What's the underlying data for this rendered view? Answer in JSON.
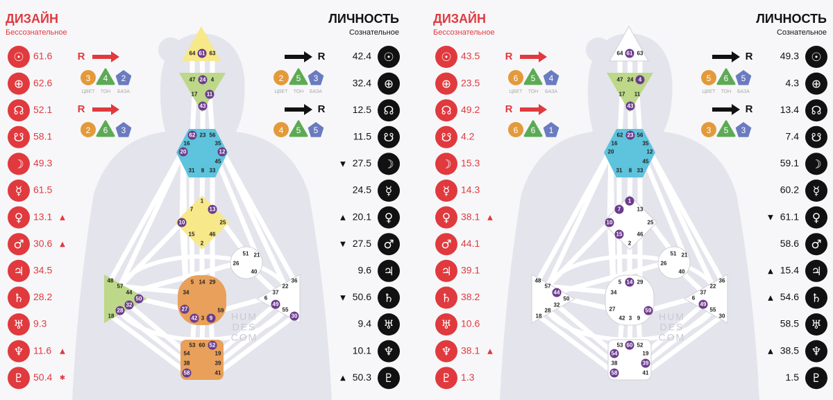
{
  "planets": [
    "☉",
    "⊕",
    "☊",
    "☋",
    "☽",
    "☿",
    "♀",
    "♂",
    "♃",
    "♄",
    "♅",
    "♆",
    "♇"
  ],
  "variable_colors": [
    "#e39a3b",
    "#5daa55",
    "#6a7bc0"
  ],
  "watermark": [
    "HUM",
    "DES",
    "COM"
  ],
  "charts": [
    {
      "design": {
        "title": "ДИЗАЙН",
        "subtitle": "Бессознательное",
        "color": "#e03a3e",
        "rows": [
          {
            "value": "61.6"
          },
          {
            "value": "62.6"
          },
          {
            "value": "52.1"
          },
          {
            "value": "58.1"
          },
          {
            "value": "49.3"
          },
          {
            "value": "61.5"
          },
          {
            "value": "13.1",
            "mark": "▲"
          },
          {
            "value": "30.6",
            "mark": "▲"
          },
          {
            "value": "34.5"
          },
          {
            "value": "28.2"
          },
          {
            "value": "9.3"
          },
          {
            "value": "11.6",
            "mark": "▲"
          },
          {
            "value": "50.4",
            "mark": "✱"
          }
        ],
        "variables": [
          {
            "arrow": "R",
            "values": [
              3,
              4,
              2
            ],
            "labels": [
              "ЦВЕТ",
              "ТОН",
              "БАЗА"
            ]
          },
          {
            "arrow": "R",
            "values": [
              2,
              6,
              3
            ]
          }
        ]
      },
      "personality": {
        "title": "ЛИЧНОСТЬ",
        "subtitle": "Сознательное",
        "color": "#111111",
        "rows": [
          {
            "value": "42.4"
          },
          {
            "value": "32.4"
          },
          {
            "value": "12.5"
          },
          {
            "value": "11.5"
          },
          {
            "value": "27.5",
            "mark": "▼"
          },
          {
            "value": "24.5"
          },
          {
            "value": "20.1",
            "mark": "▲"
          },
          {
            "value": "27.5",
            "mark": "▼"
          },
          {
            "value": "9.6"
          },
          {
            "value": "50.6",
            "mark": "▼"
          },
          {
            "value": "9.4"
          },
          {
            "value": "10.1"
          },
          {
            "value": "50.3",
            "mark": "▲"
          }
        ],
        "variables": [
          {
            "arrow": "R",
            "values": [
              2,
              5,
              3
            ],
            "labels": [
              "ЦВЕТ",
              "ТОН",
              "БАЗА"
            ]
          },
          {
            "arrow": "R",
            "values": [
              4,
              5,
              5
            ]
          }
        ]
      },
      "centers": {
        "H": {
          "color": "#f7e88a",
          "gates": [
            {
              "n": 64
            },
            {
              "n": 61,
              "on": true
            },
            {
              "n": 63
            }
          ]
        },
        "A": {
          "color": "#bcd888",
          "gates": [
            {
              "n": 47
            },
            {
              "n": 24,
              "on": true
            },
            {
              "n": 4
            },
            {
              "n": 17
            },
            {
              "n": 11,
              "on": true
            },
            {
              "n": 43,
              "on": true
            }
          ]
        },
        "T": {
          "color": "#5ec3dc",
          "gates": [
            {
              "n": 62,
              "on": true
            },
            {
              "n": 23
            },
            {
              "n": 56
            },
            {
              "n": 16
            },
            {
              "n": 35
            },
            {
              "n": 20,
              "on": true
            },
            {
              "n": 12,
              "on": true
            },
            {
              "n": 45
            },
            {
              "n": 31
            },
            {
              "n": 8
            },
            {
              "n": 33
            }
          ]
        },
        "G": {
          "color": "#f7e88a",
          "gates": [
            {
              "n": 1
            },
            {
              "n": 7
            },
            {
              "n": 13,
              "on": true
            },
            {
              "n": 10,
              "on": true
            },
            {
              "n": 25
            },
            {
              "n": 15
            },
            {
              "n": 46
            },
            {
              "n": 2
            }
          ]
        },
        "E": {
          "color": "#ffffff",
          "gates": [
            {
              "n": 51
            },
            {
              "n": 21
            },
            {
              "n": 26
            },
            {
              "n": 40
            }
          ]
        },
        "S": {
          "color": "#bcd888",
          "gates": [
            {
              "n": 48
            },
            {
              "n": 57
            },
            {
              "n": 44
            },
            {
              "n": 50,
              "on": true
            },
            {
              "n": 32,
              "on": true
            },
            {
              "n": 28,
              "on": true
            },
            {
              "n": 18
            }
          ]
        },
        "C": {
          "color": "#e8a05a",
          "gates": [
            {
              "n": 5
            },
            {
              "n": 14
            },
            {
              "n": 29
            },
            {
              "n": 34
            },
            {
              "n": 27,
              "on": true
            },
            {
              "n": 59
            },
            {
              "n": 42,
              "on": true
            },
            {
              "n": 3
            },
            {
              "n": 9,
              "on": true
            }
          ]
        },
        "P": {
          "color": "#ffffff",
          "gates": [
            {
              "n": 36
            },
            {
              "n": 22
            },
            {
              "n": 37
            },
            {
              "n": 6
            },
            {
              "n": 49,
              "on": true
            },
            {
              "n": 55
            },
            {
              "n": 30,
              "on": true
            }
          ]
        },
        "R": {
          "color": "#e8a05a",
          "gates": [
            {
              "n": 53
            },
            {
              "n": 60
            },
            {
              "n": 52,
              "on": true
            },
            {
              "n": 54
            },
            {
              "n": 19
            },
            {
              "n": 38
            },
            {
              "n": 39
            },
            {
              "n": 58,
              "on": true
            },
            {
              "n": 41
            }
          ]
        }
      }
    },
    {
      "design": {
        "title": "ДИЗАЙН",
        "subtitle": "Бессознательное",
        "color": "#e03a3e",
        "rows": [
          {
            "value": "43.5"
          },
          {
            "value": "23.5"
          },
          {
            "value": "49.2"
          },
          {
            "value": "4.2"
          },
          {
            "value": "15.3"
          },
          {
            "value": "14.3"
          },
          {
            "value": "38.1",
            "mark": "▲"
          },
          {
            "value": "44.1"
          },
          {
            "value": "39.1"
          },
          {
            "value": "38.2"
          },
          {
            "value": "10.6"
          },
          {
            "value": "38.1",
            "mark": "▲"
          },
          {
            "value": "1.3"
          }
        ],
        "variables": [
          {
            "arrow": "R",
            "values": [
              6,
              5,
              4
            ],
            "labels": [
              "ЦВЕТ",
              "ТОН",
              "БАЗА"
            ]
          },
          {
            "arrow": "R",
            "values": [
              6,
              6,
              1
            ]
          }
        ]
      },
      "personality": {
        "title": "ЛИЧНОСТЬ",
        "subtitle": "Сознательное",
        "color": "#111111",
        "rows": [
          {
            "value": "49.3"
          },
          {
            "value": "4.3"
          },
          {
            "value": "13.4"
          },
          {
            "value": "7.4"
          },
          {
            "value": "59.1"
          },
          {
            "value": "60.2"
          },
          {
            "value": "61.1",
            "mark": "▼"
          },
          {
            "value": "58.6"
          },
          {
            "value": "15.4",
            "mark": "▲"
          },
          {
            "value": "54.6",
            "mark": "▲"
          },
          {
            "value": "58.5"
          },
          {
            "value": "38.5",
            "mark": "▲"
          },
          {
            "value": "1.5"
          }
        ],
        "variables": [
          {
            "arrow": "R",
            "values": [
              5,
              6,
              5
            ],
            "labels": [
              "ЦВЕТ",
              "ТОН",
              "БАЗА"
            ]
          },
          {
            "arrow": "R",
            "values": [
              3,
              5,
              3
            ]
          }
        ]
      },
      "centers": {
        "H": {
          "color": "#ffffff",
          "gates": [
            {
              "n": 64
            },
            {
              "n": 61,
              "on": true
            },
            {
              "n": 63
            }
          ]
        },
        "A": {
          "color": "#bcd888",
          "gates": [
            {
              "n": 47
            },
            {
              "n": 24
            },
            {
              "n": 4,
              "on": true
            },
            {
              "n": 17
            },
            {
              "n": 11
            },
            {
              "n": 43,
              "on": true
            }
          ]
        },
        "T": {
          "color": "#5ec3dc",
          "gates": [
            {
              "n": 62
            },
            {
              "n": 23,
              "on": true
            },
            {
              "n": 56
            },
            {
              "n": 16
            },
            {
              "n": 35
            },
            {
              "n": 20
            },
            {
              "n": 12
            },
            {
              "n": 45
            },
            {
              "n": 31
            },
            {
              "n": 8
            },
            {
              "n": 33
            }
          ]
        },
        "G": {
          "color": "#ffffff",
          "gates": [
            {
              "n": 1,
              "on": true
            },
            {
              "n": 7,
              "on": true
            },
            {
              "n": 13
            },
            {
              "n": 10,
              "on": true
            },
            {
              "n": 25
            },
            {
              "n": 15,
              "on": true
            },
            {
              "n": 46
            },
            {
              "n": 2
            }
          ]
        },
        "E": {
          "color": "#ffffff",
          "gates": [
            {
              "n": 51
            },
            {
              "n": 21
            },
            {
              "n": 26
            },
            {
              "n": 40
            }
          ]
        },
        "S": {
          "color": "#ffffff",
          "gates": [
            {
              "n": 48
            },
            {
              "n": 57
            },
            {
              "n": 44,
              "on": true
            },
            {
              "n": 50
            },
            {
              "n": 32
            },
            {
              "n": 28
            },
            {
              "n": 18
            }
          ]
        },
        "C": {
          "color": "#ffffff",
          "gates": [
            {
              "n": 5
            },
            {
              "n": 14,
              "on": true
            },
            {
              "n": 29
            },
            {
              "n": 34
            },
            {
              "n": 27
            },
            {
              "n": 59,
              "on": true
            },
            {
              "n": 42
            },
            {
              "n": 3
            },
            {
              "n": 9
            }
          ]
        },
        "P": {
          "color": "#ffffff",
          "gates": [
            {
              "n": 36
            },
            {
              "n": 22
            },
            {
              "n": 37
            },
            {
              "n": 6
            },
            {
              "n": 49,
              "on": true
            },
            {
              "n": 55
            },
            {
              "n": 30
            }
          ]
        },
        "R": {
          "color": "#ffffff",
          "gates": [
            {
              "n": 53
            },
            {
              "n": 60,
              "on": true
            },
            {
              "n": 52
            },
            {
              "n": 54,
              "on": true
            },
            {
              "n": 19
            },
            {
              "n": 38
            },
            {
              "n": 39,
              "on": true
            },
            {
              "n": 58,
              "on": true
            },
            {
              "n": 41
            }
          ]
        }
      }
    }
  ]
}
